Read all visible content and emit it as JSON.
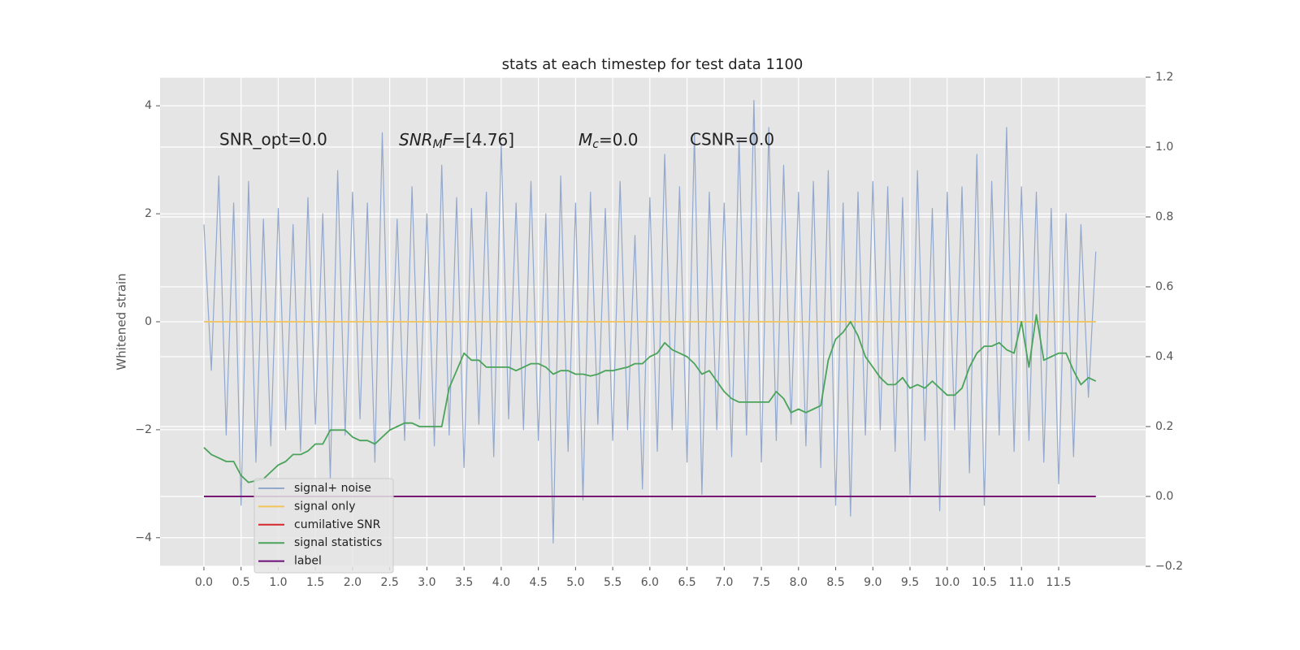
{
  "chart_data": {
    "type": "line",
    "title": "stats at each timestep for test data 1100",
    "ylabel": "Whitened strain",
    "annotations": [
      {
        "text": "SNR_opt=0.0"
      },
      {
        "base": "SNR",
        "sub": "M",
        "rest": "F=[4.76]"
      },
      {
        "base": "M",
        "sub": "c",
        "rest": "=0.0"
      },
      {
        "text": "CSNR=0.0"
      }
    ],
    "x": [
      0,
      0.1,
      0.2,
      0.3,
      0.4,
      0.5,
      0.6,
      0.7,
      0.8,
      0.9,
      1,
      1.1,
      1.2,
      1.3,
      1.4,
      1.5,
      1.6,
      1.7,
      1.8,
      1.9,
      2,
      2.1,
      2.2,
      2.3,
      2.4,
      2.5,
      2.6,
      2.7,
      2.8,
      2.9,
      3,
      3.1,
      3.2,
      3.3,
      3.4,
      3.5,
      3.6,
      3.7,
      3.8,
      3.9,
      4,
      4.1,
      4.2,
      4.3,
      4.4,
      4.5,
      4.6,
      4.7,
      4.8,
      4.9,
      5,
      5.1,
      5.2,
      5.3,
      5.4,
      5.5,
      5.6,
      5.7,
      5.8,
      5.9,
      6,
      6.1,
      6.2,
      6.3,
      6.4,
      6.5,
      6.6,
      6.7,
      6.8,
      6.9,
      7,
      7.1,
      7.2,
      7.3,
      7.4,
      7.5,
      7.6,
      7.7,
      7.8,
      7.9,
      8,
      8.1,
      8.2,
      8.3,
      8.4,
      8.5,
      8.6,
      8.7,
      8.8,
      8.9,
      9,
      9.1,
      9.2,
      9.3,
      9.4,
      9.5,
      9.6,
      9.7,
      9.8,
      9.9,
      10,
      10.1,
      10.2,
      10.3,
      10.4,
      10.5,
      10.6,
      10.7,
      10.8,
      10.9,
      11,
      11.1,
      11.2,
      11.3,
      11.4,
      11.5,
      11.6,
      11.7,
      11.8,
      11.9,
      12
    ],
    "series": [
      {
        "name": "signal+ noise",
        "color": "#92a8cd",
        "axis": "y",
        "values": [
          1.8,
          -0.9,
          2.7,
          -2.1,
          2.2,
          -3.4,
          2.6,
          -2.6,
          1.9,
          -2.3,
          2.1,
          -2.0,
          1.8,
          -2.4,
          2.3,
          -1.9,
          2.0,
          -2.9,
          2.8,
          -2.1,
          2.4,
          -1.8,
          2.2,
          -2.6,
          3.5,
          -2.0,
          1.9,
          -2.2,
          2.5,
          -1.8,
          2.0,
          -2.3,
          2.9,
          -2.1,
          2.3,
          -2.7,
          2.1,
          -1.9,
          2.4,
          -2.5,
          3.3,
          -1.8,
          2.2,
          -2.0,
          2.6,
          -2.2,
          2.0,
          -4.1,
          2.7,
          -2.4,
          2.2,
          -3.3,
          2.4,
          -1.9,
          2.1,
          -2.2,
          2.6,
          -2.0,
          1.6,
          -3.1,
          2.3,
          -2.4,
          3.1,
          -2.0,
          2.5,
          -2.6,
          3.5,
          -3.2,
          2.4,
          -2.0,
          2.2,
          -2.5,
          3.4,
          -2.1,
          4.1,
          -2.6,
          3.6,
          -2.2,
          2.9,
          -1.9,
          2.4,
          -2.3,
          2.6,
          -2.7,
          2.8,
          -3.4,
          2.2,
          -3.6,
          2.4,
          -2.1,
          2.6,
          -2.0,
          2.5,
          -2.4,
          2.3,
          -3.2,
          2.8,
          -2.2,
          2.1,
          -3.5,
          2.4,
          -2.0,
          2.5,
          -2.8,
          3.1,
          -3.4,
          2.6,
          -2.1,
          3.6,
          -2.4,
          2.5,
          -2.2,
          2.4,
          -2.6,
          2.1,
          -3.0,
          2.0,
          -2.5,
          1.8,
          -1.4,
          1.3
        ]
      },
      {
        "name": "signal only",
        "color": "#f2c45a",
        "axis": "y",
        "x": [
          0,
          12
        ],
        "values": [
          0,
          0
        ]
      },
      {
        "name": "cumilative SNR",
        "color": "#d62728",
        "axis": "y2",
        "x": [
          0,
          12
        ],
        "values": [
          0,
          0
        ]
      },
      {
        "name": "signal statistics",
        "color": "#4aa35a",
        "axis": "y2",
        "values": [
          0.14,
          0.12,
          0.11,
          0.1,
          0.1,
          0.06,
          0.04,
          0.045,
          0.05,
          0.07,
          0.09,
          0.1,
          0.12,
          0.12,
          0.13,
          0.15,
          0.15,
          0.19,
          0.19,
          0.19,
          0.17,
          0.16,
          0.16,
          0.15,
          0.17,
          0.19,
          0.2,
          0.21,
          0.21,
          0.2,
          0.2,
          0.2,
          0.2,
          0.31,
          0.36,
          0.41,
          0.39,
          0.39,
          0.37,
          0.37,
          0.37,
          0.37,
          0.36,
          0.37,
          0.38,
          0.38,
          0.37,
          0.35,
          0.36,
          0.36,
          0.35,
          0.35,
          0.345,
          0.35,
          0.36,
          0.36,
          0.365,
          0.37,
          0.38,
          0.38,
          0.4,
          0.41,
          0.44,
          0.42,
          0.41,
          0.4,
          0.38,
          0.35,
          0.36,
          0.33,
          0.3,
          0.28,
          0.27,
          0.27,
          0.27,
          0.27,
          0.27,
          0.3,
          0.28,
          0.24,
          0.25,
          0.24,
          0.25,
          0.26,
          0.39,
          0.45,
          0.47,
          0.5,
          0.46,
          0.4,
          0.37,
          0.34,
          0.32,
          0.32,
          0.34,
          0.31,
          0.32,
          0.31,
          0.33,
          0.31,
          0.29,
          0.29,
          0.31,
          0.37,
          0.41,
          0.43,
          0.43,
          0.44,
          0.42,
          0.41,
          0.5,
          0.37,
          0.52,
          0.39,
          0.4,
          0.41,
          0.41,
          0.36,
          0.32,
          0.34,
          0.33
        ]
      },
      {
        "name": "label",
        "color": "#6a0f78",
        "axis": "y2",
        "x": [
          0,
          12
        ],
        "values": [
          0,
          0
        ]
      }
    ],
    "xlim": [
      -0.59,
      12.67
    ],
    "xticks": [
      {
        "value": 0,
        "label": "0.0"
      },
      0.5,
      {
        "value": 1,
        "label": "1.0"
      },
      1.5,
      {
        "value": 2,
        "label": "2.0"
      },
      2.5,
      {
        "value": 3,
        "label": "3.0"
      },
      3.5,
      {
        "value": 4,
        "label": "4.0"
      },
      4.5,
      {
        "value": 5,
        "label": "5.0"
      },
      5.5,
      {
        "value": 6,
        "label": "6.0"
      },
      6.5,
      {
        "value": 7,
        "label": "7.0"
      },
      7.5,
      {
        "value": 8,
        "label": "8.0"
      },
      8.5,
      {
        "value": 9,
        "label": "9.0"
      },
      9.5,
      {
        "value": 10,
        "label": "10.0"
      },
      10.5,
      {
        "value": 11,
        "label": "11.0"
      },
      11.5
    ],
    "ylim": [
      -4.53,
      4.53
    ],
    "yticks": [
      {
        "value": -4,
        "label": "−4"
      },
      {
        "value": -2,
        "label": "−2"
      },
      0,
      2,
      4
    ],
    "y2lim": [
      -0.2,
      1.2
    ],
    "y2ticks": [
      {
        "value": -0.2,
        "label": "−0.2"
      },
      {
        "value": 0,
        "label": "0.0"
      },
      0.2,
      0.4,
      0.6,
      0.8,
      {
        "value": 1,
        "label": "1.0"
      },
      1.2
    ],
    "grid": true,
    "legend": "lower left"
  }
}
